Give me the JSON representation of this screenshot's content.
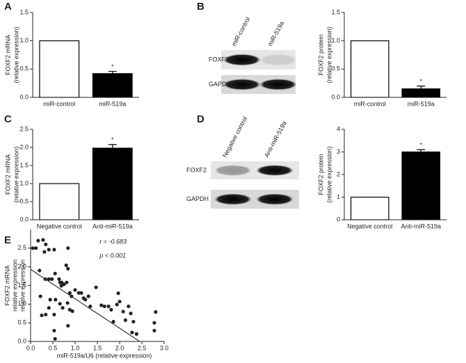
{
  "chart_data": [
    {
      "panel": "A",
      "type": "bar",
      "ylabel": [
        "FOXF2 mRNA",
        "(relative expression)"
      ],
      "categories": [
        "miR-control",
        "miR-519a"
      ],
      "values": [
        1.0,
        0.42
      ],
      "errors": [
        0,
        0.04
      ],
      "colors": [
        "#ffffff",
        "#000000"
      ],
      "value_annotations": [
        null,
        "*"
      ],
      "ylim": [
        0,
        1.5
      ],
      "yticks": [
        {
          "value": 0,
          "label": "0.0"
        },
        {
          "value": 0.5,
          "label": "0.5"
        },
        {
          "value": 1,
          "label": "1.0"
        },
        {
          "value": 1.5,
          "label": "1.5"
        }
      ]
    },
    {
      "panel": "B",
      "type": "bar",
      "ylabel": [
        "FOXF2 protein",
        "(relative expression)"
      ],
      "blot": {
        "lanes": [
          "miR-control",
          "miR-519a"
        ],
        "rows": [
          "FOXF2",
          "GAPDH"
        ]
      },
      "categories": [
        "miR-control",
        "miR-519a"
      ],
      "values": [
        1.0,
        0.15
      ],
      "errors": [
        0,
        0.05
      ],
      "colors": [
        "#ffffff",
        "#000000"
      ],
      "value_annotations": [
        null,
        "*"
      ],
      "ylim": [
        0,
        1.5
      ],
      "yticks": [
        {
          "value": 0,
          "label": "0.0"
        },
        {
          "value": 0.5,
          "label": "0.5"
        },
        {
          "value": 1,
          "label": "1.0"
        },
        {
          "value": 1.5,
          "label": "1.5"
        }
      ]
    },
    {
      "panel": "C",
      "type": "bar",
      "ylabel": [
        "FOXF2 mRNA",
        "(relative expression)"
      ],
      "categories": [
        "Negative control",
        "Anti-miR-519a"
      ],
      "values": [
        1.0,
        1.98
      ],
      "errors": [
        0,
        0.1
      ],
      "colors": [
        "#ffffff",
        "#000000"
      ],
      "value_annotations": [
        null,
        "*"
      ],
      "ylim": [
        0,
        2.5
      ],
      "yticks": [
        {
          "value": 0,
          "label": "0.0"
        },
        {
          "value": 0.5,
          "label": "0.5"
        },
        {
          "value": 1,
          "label": "1.0"
        },
        {
          "value": 1.5,
          "label": "1.5"
        },
        {
          "value": 2,
          "label": "2.0"
        },
        {
          "value": 2.5,
          "label": "2.5"
        }
      ]
    },
    {
      "panel": "D",
      "type": "bar",
      "ylabel": [
        "FOXF2 protein",
        "(relative expression)"
      ],
      "blot": {
        "lanes": [
          "Negative control",
          "Anti-miR-519a"
        ],
        "rows": [
          "FOXF2",
          "GAPDH"
        ]
      },
      "categories": [
        "Negative control",
        "Anti-miR-519a"
      ],
      "values": [
        1.0,
        3.0
      ],
      "errors": [
        0,
        0.1
      ],
      "colors": [
        "#ffffff",
        "#000000"
      ],
      "value_annotations": [
        null,
        "*"
      ],
      "ylim": [
        0,
        4
      ],
      "yticks": [
        0,
        1,
        2,
        3,
        4
      ]
    },
    {
      "panel": "E",
      "type": "scatter",
      "ylabel": [
        "FOXF2 mRNA",
        "relative expression",
        "relative expression"
      ],
      "xlabel": "miR-519a/U6 (relative expression)",
      "annotations": [
        "r = -0.683",
        "p < 0.001"
      ],
      "color": "#222222",
      "x": [
        0.05,
        0.12,
        0.17,
        0.28,
        0.34,
        0.41,
        0.53,
        0.84,
        0.31,
        0.2,
        0.33,
        0.41,
        0.48,
        0.55,
        0.64,
        0.66,
        0.7,
        0.75,
        0.81,
        0.88,
        0.92,
        1.0,
        1.08,
        1.14,
        1.19,
        1.23,
        1.3,
        1.34,
        1.47,
        1.59,
        1.66,
        1.75,
        1.81,
        1.86,
        1.94,
        1.97,
        2.0,
        2.08,
        2.13,
        2.2,
        2.25,
        2.31,
        2.38,
        2.28,
        2.78,
        2.78,
        2.81,
        0.22,
        0.25,
        0.34,
        0.41,
        0.44,
        0.53,
        0.53,
        0.55,
        0.72,
        0.83,
        0.88,
        0.94,
        0.84,
        0.69,
        0.8,
        0.84,
        0.56,
        0.66
      ],
      "y": [
        2.5,
        2.5,
        2.7,
        2.72,
        2.6,
        2.46,
        2.46,
        2.5,
        2.4,
        1.9,
        1.67,
        1.67,
        1.67,
        1.82,
        1.67,
        1.58,
        1.58,
        1.53,
        1.58,
        1.3,
        1.21,
        1.38,
        1.3,
        1.3,
        1.16,
        1.12,
        1.21,
        0.94,
        1.45,
        0.97,
        0.94,
        0.94,
        0.85,
        0.53,
        0.99,
        1.29,
        1.07,
        0.8,
        0.57,
        0.94,
        0.75,
        0.53,
        0.2,
        0.24,
        0.29,
        0.5,
        0.79,
        1.21,
        0.7,
        0.72,
        0.9,
        1.12,
        0.72,
        0.29,
        0.07,
        0.9,
        1.03,
        0.85,
        0.81,
        0.42,
        1.49,
        2.04,
        1.95,
        1.12,
        1.01
      ],
      "trendline": {
        "x": [
          0,
          2.45
        ],
        "y": [
          1.93,
          0
        ]
      },
      "xlim": [
        0,
        3
      ],
      "xticks": [
        {
          "value": 0,
          "label": "0.0"
        },
        {
          "value": 0.5,
          "label": "0.5"
        },
        {
          "value": 1,
          "label": "1.0"
        },
        {
          "value": 1.5,
          "label": "1.5"
        },
        {
          "value": 2,
          "label": "2.0"
        },
        {
          "value": 2.5,
          "label": "2.5"
        },
        {
          "value": 3,
          "label": "3.0"
        }
      ],
      "ylim": [
        0,
        3
      ],
      "yticks": [
        {
          "value": 0,
          "label": "0.0"
        },
        {
          "value": 0.5,
          "label": "0.5"
        },
        {
          "value": 1,
          "label": "1.0"
        },
        {
          "value": 1.5,
          "label": "1.5"
        },
        {
          "value": 2,
          "label": "2.0"
        },
        {
          "value": 2.5,
          "label": "2.5"
        }
      ]
    }
  ]
}
